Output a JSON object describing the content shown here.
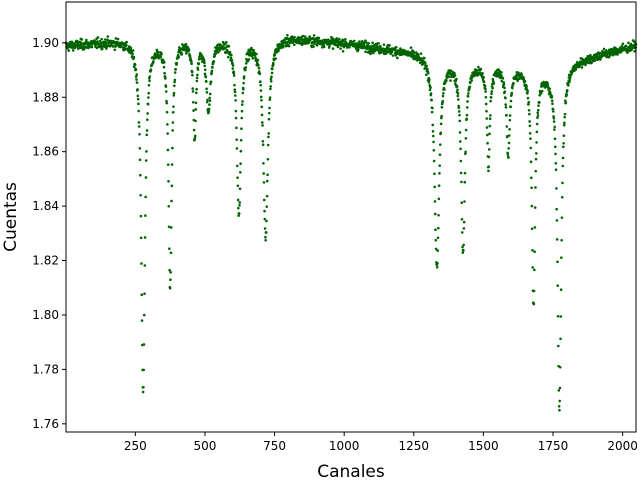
{
  "chart_data": {
    "type": "scatter",
    "xlabel": "Canales",
    "ylabel": "Cuentas",
    "xlim": [
      1,
      2048
    ],
    "ylim": [
      1.757,
      1.915
    ],
    "x_ticks": [
      250,
      500,
      750,
      1000,
      1250,
      1500,
      1750,
      2000
    ],
    "y_ticks": [
      1.76,
      1.78,
      1.8,
      1.82,
      1.84,
      1.86,
      1.88,
      1.9
    ],
    "grid": false,
    "legend": "none",
    "series": [
      {
        "marker_color": "#006400",
        "marker": "circle",
        "n_points": 2048,
        "baseline": [
          {
            "x": 1,
            "y": 1.899
          },
          {
            "x": 200,
            "y": 1.901
          },
          {
            "x": 800,
            "y": 1.902
          },
          {
            "x": 1000,
            "y": 1.9
          },
          {
            "x": 1300,
            "y": 1.896
          },
          {
            "x": 1500,
            "y": 1.892
          },
          {
            "x": 1750,
            "y": 1.89
          },
          {
            "x": 1800,
            "y": 1.893
          },
          {
            "x": 2048,
            "y": 1.899
          }
        ],
        "noise_amplitude": 0.0018,
        "absorption_dips": [
          {
            "x": 278,
            "depth": 0.128,
            "width": 8
          },
          {
            "x": 375,
            "depth": 0.09,
            "width": 7
          },
          {
            "x": 463,
            "depth": 0.036,
            "width": 6
          },
          {
            "x": 513,
            "depth": 0.025,
            "width": 10
          },
          {
            "x": 622,
            "depth": 0.064,
            "width": 9
          },
          {
            "x": 718,
            "depth": 0.072,
            "width": 10
          },
          {
            "x": 1333,
            "depth": 0.078,
            "width": 10
          },
          {
            "x": 1427,
            "depth": 0.07,
            "width": 8
          },
          {
            "x": 1518,
            "depth": 0.036,
            "width": 6
          },
          {
            "x": 1589,
            "depth": 0.032,
            "width": 7
          },
          {
            "x": 1680,
            "depth": 0.086,
            "width": 7
          },
          {
            "x": 1773,
            "depth": 0.125,
            "width": 8
          }
        ]
      }
    ]
  }
}
